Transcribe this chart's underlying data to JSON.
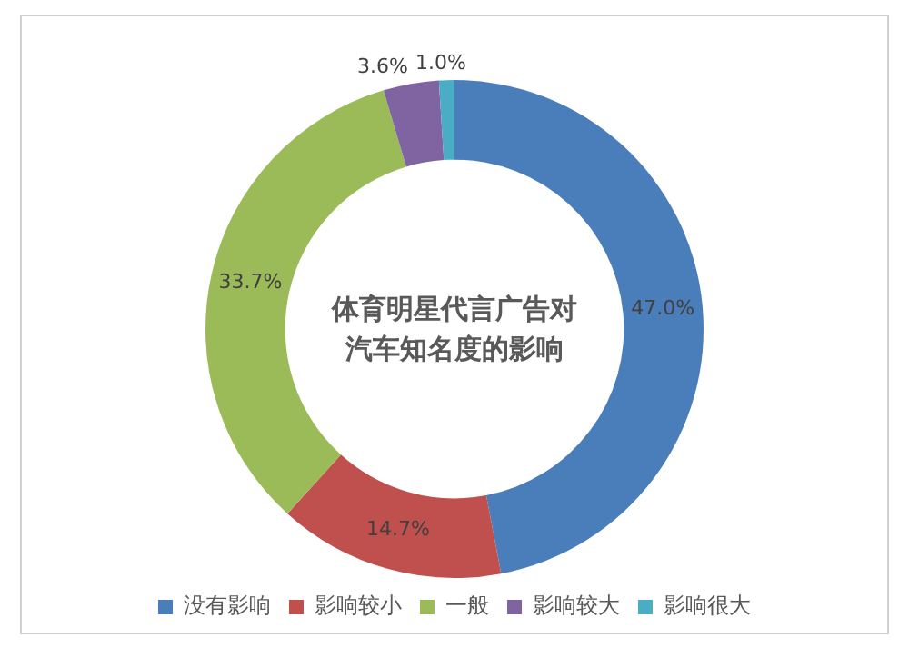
{
  "chart_data": {
    "type": "donut",
    "title": "体育明星代言广告对汽车知名度的影响",
    "categories": [
      "没有影响",
      "影响较小",
      "一般",
      "影响较大",
      "影响很大"
    ],
    "values": [
      47.0,
      14.7,
      33.7,
      3.6,
      1.0
    ],
    "colors": [
      "#4a7ebb",
      "#c0504d",
      "#9bbb59",
      "#8064a2",
      "#4bacc6"
    ],
    "value_labels": [
      "47.0%",
      "14.7%",
      "33.7%",
      "3.6%",
      "1.0%"
    ],
    "legend": "bottom"
  }
}
